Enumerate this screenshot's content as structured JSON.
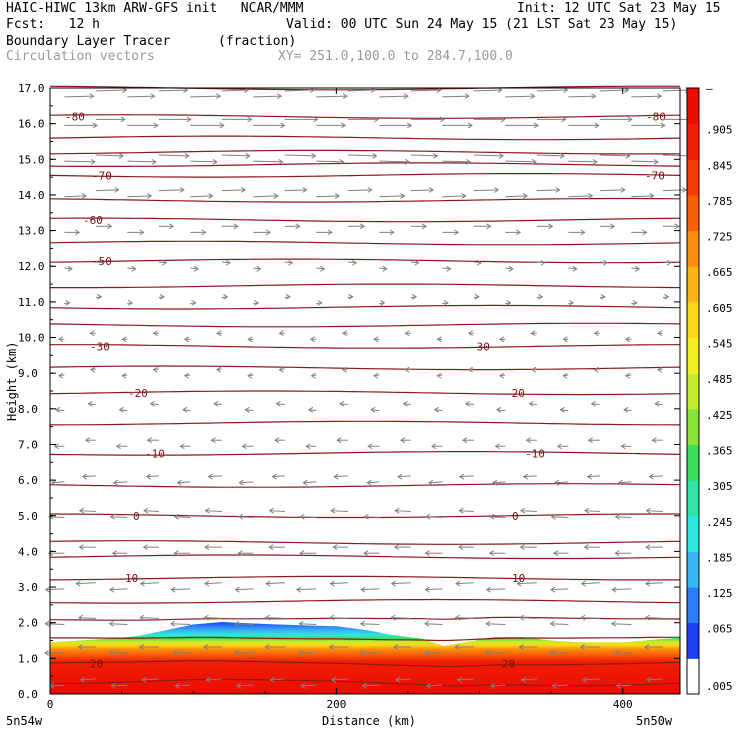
{
  "header": {
    "line1_left": "HAIC-HIWC 13km ARW-GFS init   NCAR/MMM",
    "line1_right": "Init: 12 UTC Sat 23 May 15",
    "line2_left": "Fcst:   12 h",
    "line2_right": "Valid: 00 UTC Sun 24 May 15 (21 LST Sat 23 May 15)",
    "field1_name": "Boundary Layer Tracer",
    "field1_units": "(fraction)",
    "field2_name": "Circulation vectors",
    "xy_range": "XY= 251.0,100.0 to 284.7,100.0"
  },
  "chart_data": {
    "type": "heatmap",
    "title": "Boundary Layer Tracer (fraction)",
    "xlabel": "Distance (km)",
    "ylabel": "Height (km)",
    "xlim": [
      0,
      440
    ],
    "ylim": [
      0,
      17
    ],
    "x_ticks": [
      "0",
      "200",
      "400"
    ],
    "x_end_labels": [
      "5n54w",
      "5n50w"
    ],
    "y_ticks": [
      "0.0",
      "1.0",
      "2.0",
      "3.0",
      "4.0",
      "5.0",
      "6.0",
      "7.0",
      "8.0",
      "9.0",
      "10.0",
      "11.0",
      "12.0",
      "13.0",
      "14.0",
      "15.0",
      "16.0",
      "17.0"
    ],
    "colorbar": {
      "labels": [
        ".005",
        ".065",
        ".125",
        ".185",
        ".245",
        ".305",
        ".365",
        ".425",
        ".485",
        ".545",
        ".605",
        ".665",
        ".725",
        ".785",
        ".845",
        ".905",
        "1"
      ],
      "colors": [
        "#ffffff",
        "#1c3ff0",
        "#2f7df5",
        "#38b6f2",
        "#2ee8e0",
        "#2fe6a8",
        "#3cdc5a",
        "#8ae23a",
        "#c4ec2e",
        "#f2f020",
        "#f9d818",
        "#fbb512",
        "#fb8c0c",
        "#f86008",
        "#f53a06",
        "#f01e04",
        "#ec0c02"
      ]
    },
    "tracer_top_km": [
      [
        0,
        1.45
      ],
      [
        20,
        1.5
      ],
      [
        40,
        1.55
      ],
      [
        60,
        1.62
      ],
      [
        80,
        1.78
      ],
      [
        100,
        1.95
      ],
      [
        120,
        2.02
      ],
      [
        140,
        1.98
      ],
      [
        160,
        1.95
      ],
      [
        180,
        1.92
      ],
      [
        200,
        1.9
      ],
      [
        220,
        1.8
      ],
      [
        240,
        1.65
      ],
      [
        260,
        1.55
      ],
      [
        275,
        1.35
      ],
      [
        290,
        1.45
      ],
      [
        310,
        1.6
      ],
      [
        330,
        1.6
      ],
      [
        350,
        1.5
      ],
      [
        370,
        1.45
      ],
      [
        400,
        1.45
      ],
      [
        420,
        1.52
      ],
      [
        440,
        1.58
      ]
    ],
    "temperature_contours": [
      {
        "label": "20",
        "y": 0.85
      },
      {
        "label": "10",
        "y": 3.25
      },
      {
        "label": "0",
        "y": 5.0
      },
      {
        "label": "-10",
        "y": 6.75
      },
      {
        "label": "-20",
        "y": 8.45
      },
      {
        "label": "-30",
        "y": 9.75
      },
      {
        "label": "-50",
        "y": 12.15
      },
      {
        "label": "-60",
        "y": 13.3
      },
      {
        "label": "-70",
        "y": 14.55
      },
      {
        "label": "-80",
        "y": 16.2
      }
    ],
    "contour_levels_km": [
      0.3,
      0.85,
      1.55,
      2.1,
      2.6,
      3.25,
      3.85,
      4.25,
      5.0,
      5.85,
      6.75,
      7.6,
      8.45,
      9.15,
      9.75,
      10.35,
      10.85,
      11.45,
      12.15,
      12.65,
      13.3,
      13.85,
      14.55,
      14.85,
      15.2,
      15.6,
      16.2,
      17.0
    ],
    "wind_vectors": {
      "description": "Circulation vectors",
      "levels": [
        {
          "y": 0.3,
          "u": -6
        },
        {
          "y": 1.2,
          "u": -7
        },
        {
          "y": 2.0,
          "u": -7
        },
        {
          "y": 3.0,
          "u": -7
        },
        {
          "y": 4.0,
          "u": -6
        },
        {
          "y": 5.0,
          "u": -6
        },
        {
          "y": 6.0,
          "u": -5
        },
        {
          "y": 7.0,
          "u": -4
        },
        {
          "y": 8.0,
          "u": -3
        },
        {
          "y": 9.0,
          "u": -2
        },
        {
          "y": 10.0,
          "u": -2
        },
        {
          "y": 11.0,
          "u": 2
        },
        {
          "y": 12.0,
          "u": 3
        },
        {
          "y": 13.0,
          "u": 6
        },
        {
          "y": 14.0,
          "u": 9
        },
        {
          "y": 15.0,
          "u": 11
        },
        {
          "y": 16.0,
          "u": 12
        },
        {
          "y": 16.8,
          "u": 11
        }
      ]
    }
  }
}
